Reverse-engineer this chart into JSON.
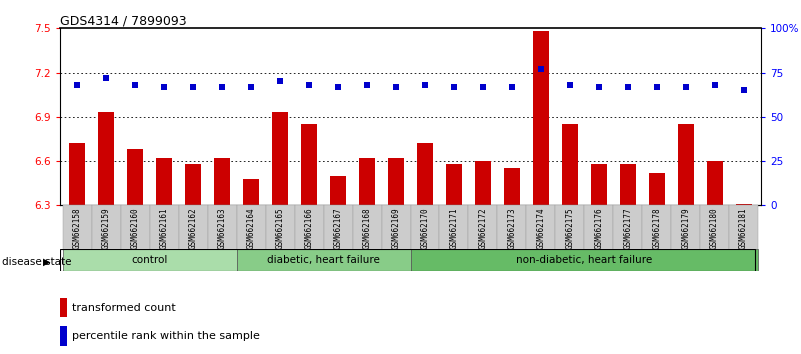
{
  "title": "GDS4314 / 7899093",
  "samples": [
    "GSM662158",
    "GSM662159",
    "GSM662160",
    "GSM662161",
    "GSM662162",
    "GSM662163",
    "GSM662164",
    "GSM662165",
    "GSM662166",
    "GSM662167",
    "GSM662168",
    "GSM662169",
    "GSM662170",
    "GSM662171",
    "GSM662172",
    "GSM662173",
    "GSM662174",
    "GSM662175",
    "GSM662176",
    "GSM662177",
    "GSM662178",
    "GSM662179",
    "GSM662180",
    "GSM662181"
  ],
  "bar_values": [
    6.72,
    6.93,
    6.68,
    6.62,
    6.58,
    6.62,
    6.48,
    6.93,
    6.85,
    6.5,
    6.62,
    6.62,
    6.72,
    6.58,
    6.6,
    6.55,
    7.48,
    6.85,
    6.58,
    6.58,
    6.52,
    6.85,
    6.6,
    6.31
  ],
  "dot_values": [
    68,
    72,
    68,
    67,
    67,
    67,
    67,
    70,
    68,
    67,
    68,
    67,
    68,
    67,
    67,
    67,
    77,
    68,
    67,
    67,
    67,
    67,
    68,
    65
  ],
  "ylim_left": [
    6.3,
    7.5
  ],
  "ylim_right": [
    0,
    100
  ],
  "yticks_left": [
    6.3,
    6.6,
    6.9,
    7.2,
    7.5
  ],
  "yticks_right": [
    0,
    25,
    50,
    75,
    100
  ],
  "ytick_labels_left": [
    "6.3",
    "6.6",
    "6.9",
    "7.2",
    "7.5"
  ],
  "ytick_labels_right": [
    "0",
    "25",
    "50",
    "75",
    "100%"
  ],
  "bar_color": "#cc0000",
  "dot_color": "#0000cc",
  "bar_bottom": 6.3,
  "groups": [
    {
      "label": "control",
      "start": 0,
      "end": 5,
      "color": "#aaddaa"
    },
    {
      "label": "diabetic, heart failure",
      "start": 6,
      "end": 11,
      "color": "#88cc88"
    },
    {
      "label": "non-diabetic, heart failure",
      "start": 12,
      "end": 23,
      "color": "#66bb66"
    }
  ],
  "legend_bar_label": "transformed count",
  "legend_dot_label": "percentile rank within the sample",
  "disease_state_label": "disease state"
}
